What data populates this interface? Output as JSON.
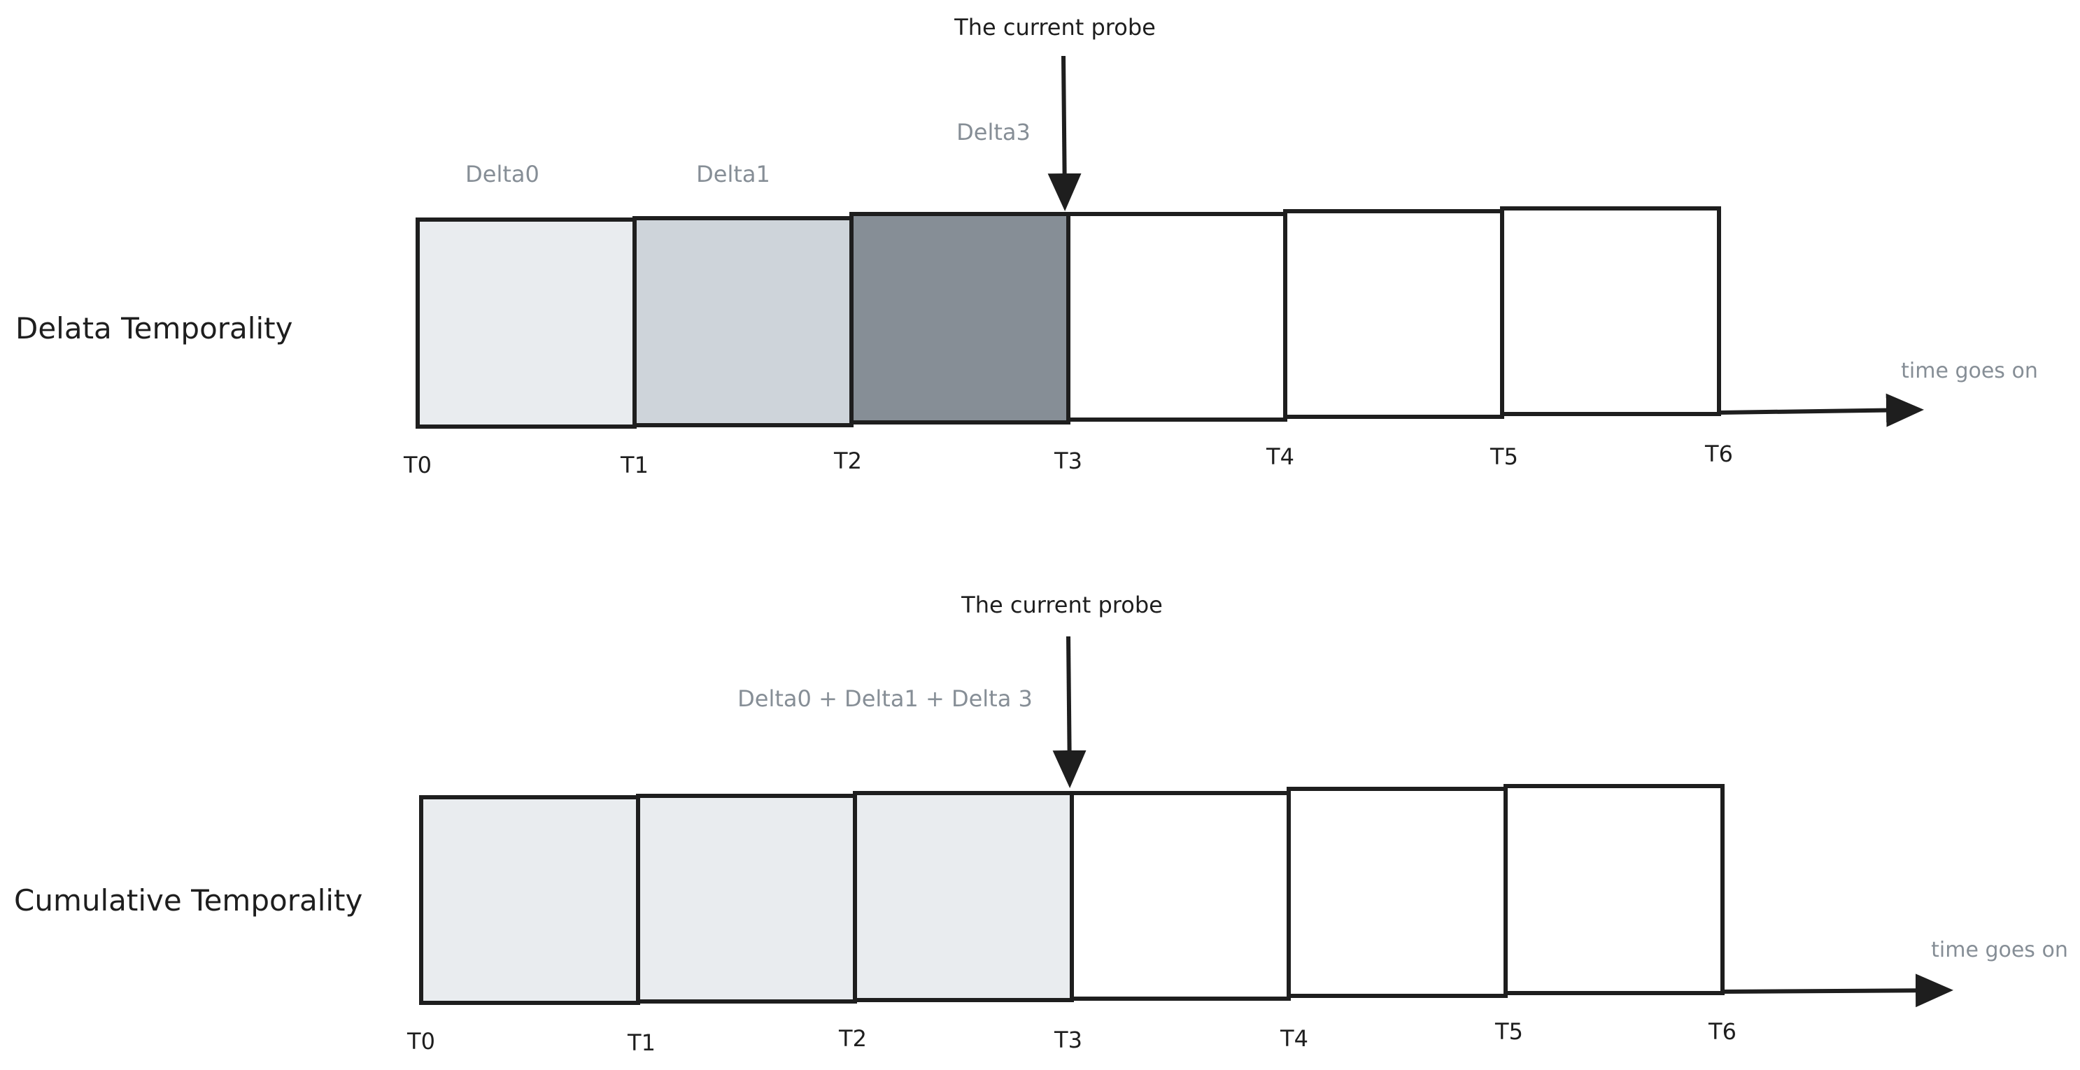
{
  "colors": {
    "stroke": "#1e1e1e",
    "box_light": "#e9ecef",
    "box_mid": "#ced4da",
    "box_dark": "#868e96",
    "box_empty": "#ffffff",
    "muted_text": "#868e96"
  },
  "delta": {
    "row_label": "Delata Temporality",
    "probe_label": "The current probe",
    "interval_labels": [
      "Delta0",
      "Delta1",
      "Delta3"
    ],
    "time_label": "time goes on",
    "ticks": [
      "T0",
      "T1",
      "T2",
      "T3",
      "T4",
      "T5",
      "T6"
    ],
    "box_fills": [
      "light",
      "mid",
      "dark",
      "empty",
      "empty",
      "empty"
    ]
  },
  "cumulative": {
    "row_label": "Cumulative Temporality",
    "probe_label": "The current probe",
    "sum_label": "Delta0 + Delta1 + Delta 3",
    "time_label": "time goes on",
    "ticks": [
      "T0",
      "T1",
      "T2",
      "T3",
      "T4",
      "T5",
      "T6"
    ],
    "box_fills": [
      "light",
      "light",
      "light",
      "empty",
      "empty",
      "empty"
    ]
  }
}
